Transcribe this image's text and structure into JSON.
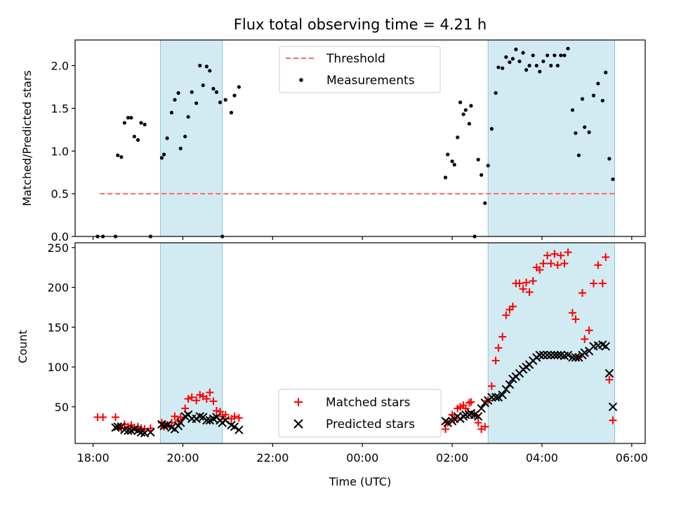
{
  "chart_data": [
    {
      "type": "scatter",
      "title": "Flux total observing time = 4.21 h",
      "xlabel": "",
      "ylabel": "Matched/Predicted stars",
      "xlim": [
        -0.4,
        12.3
      ],
      "ylim": [
        0,
        2.3
      ],
      "yticks": [
        0.0,
        0.5,
        1.0,
        1.5,
        2.0
      ],
      "ytick_labels": [
        "0.0",
        "0.5",
        "1.0",
        "1.5",
        "2.0"
      ],
      "x_unit": "hours since 18:00 UTC",
      "shaded_intervals": [
        [
          1.5,
          2.88
        ],
        [
          8.8,
          11.62
        ]
      ],
      "shade_color": "#add8e6",
      "legend": {
        "position": "top-center",
        "threshold_label": "Threshold",
        "measurements_label": "Measurements"
      },
      "threshold": {
        "y": 0.5,
        "x_range": [
          0.15,
          11.62
        ],
        "color": "#ff6666"
      },
      "measurements": {
        "x": [
          0.1,
          0.22,
          0.5,
          0.55,
          0.63,
          0.7,
          0.78,
          0.85,
          0.92,
          1.0,
          1.07,
          1.15,
          1.28,
          1.53,
          1.58,
          1.65,
          1.75,
          1.82,
          1.9,
          1.95,
          2.05,
          2.12,
          2.2,
          2.3,
          2.38,
          2.45,
          2.53,
          2.6,
          2.68,
          2.75,
          2.83,
          2.88,
          2.95,
          3.08,
          3.15,
          3.25,
          7.85,
          7.9,
          8.0,
          8.05,
          8.12,
          8.18,
          8.25,
          8.3,
          8.38,
          8.42,
          8.5,
          8.58,
          8.65,
          8.73,
          8.8,
          8.88,
          8.97,
          9.03,
          9.12,
          9.2,
          9.28,
          9.35,
          9.42,
          9.5,
          9.58,
          9.65,
          9.72,
          9.8,
          9.88,
          9.95,
          10.03,
          10.12,
          10.2,
          10.28,
          10.35,
          10.42,
          10.5,
          10.58,
          10.68,
          10.75,
          10.82,
          10.9,
          10.95,
          11.05,
          11.15,
          11.25,
          11.35,
          11.42,
          11.5,
          11.58
        ],
        "y": [
          0.0,
          0.0,
          0.0,
          0.95,
          0.93,
          1.33,
          1.39,
          1.39,
          1.17,
          1.13,
          1.33,
          1.31,
          0.0,
          0.92,
          0.96,
          1.15,
          1.45,
          1.6,
          1.68,
          1.03,
          1.17,
          1.4,
          1.69,
          1.56,
          2.0,
          1.77,
          1.99,
          1.94,
          1.73,
          1.69,
          1.57,
          0.0,
          1.6,
          1.45,
          1.65,
          1.75,
          0.69,
          0.96,
          0.88,
          0.84,
          1.16,
          1.57,
          1.43,
          1.48,
          1.32,
          1.53,
          0.0,
          0.9,
          0.72,
          0.39,
          0.83,
          1.26,
          1.68,
          1.98,
          1.97,
          2.1,
          2.04,
          2.08,
          2.19,
          2.05,
          2.15,
          1.95,
          2.0,
          2.12,
          2.0,
          1.93,
          2.05,
          2.12,
          2.0,
          2.12,
          2.0,
          2.12,
          2.12,
          2.2,
          1.48,
          1.21,
          0.95,
          1.61,
          1.28,
          1.22,
          1.65,
          1.79,
          1.59,
          1.92,
          0.91,
          0.67
        ]
      }
    },
    {
      "type": "scatter",
      "xlabel": "Time (UTC)",
      "ylabel": "Count",
      "xlim": [
        -0.4,
        12.3
      ],
      "ylim": [
        4,
        256
      ],
      "yticks": [
        50,
        100,
        150,
        200,
        250
      ],
      "ytick_labels": [
        "50",
        "100",
        "150",
        "200",
        "250"
      ],
      "xticks": [
        0,
        2,
        4,
        6,
        8,
        10,
        12
      ],
      "xtick_labels": [
        "18:00",
        "20:00",
        "22:00",
        "00:00",
        "02:00",
        "04:00",
        "06:00"
      ],
      "shaded_intervals": [
        [
          1.5,
          2.88
        ],
        [
          8.8,
          11.62
        ]
      ],
      "legend": {
        "position": "bottom-center"
      },
      "series": [
        {
          "name": "Matched stars",
          "marker": "+",
          "color": "#ff0000",
          "x": [
            0.1,
            0.22,
            0.5,
            0.55,
            0.63,
            0.7,
            0.78,
            0.85,
            0.92,
            1.0,
            1.07,
            1.15,
            1.28,
            1.53,
            1.58,
            1.65,
            1.75,
            1.82,
            1.9,
            1.95,
            2.05,
            2.12,
            2.2,
            2.3,
            2.38,
            2.45,
            2.53,
            2.6,
            2.68,
            2.75,
            2.83,
            2.88,
            2.95,
            3.08,
            3.15,
            3.25,
            7.85,
            7.9,
            8.0,
            8.05,
            8.12,
            8.18,
            8.25,
            8.3,
            8.38,
            8.42,
            8.5,
            8.58,
            8.65,
            8.73,
            8.8,
            8.88,
            8.97,
            9.03,
            9.12,
            9.2,
            9.28,
            9.35,
            9.42,
            9.5,
            9.58,
            9.65,
            9.72,
            9.8,
            9.88,
            9.95,
            10.03,
            10.12,
            10.2,
            10.28,
            10.35,
            10.42,
            10.5,
            10.58,
            10.68,
            10.75,
            10.82,
            10.9,
            10.95,
            11.05,
            11.15,
            11.25,
            11.35,
            11.42,
            11.5,
            11.58
          ],
          "y": [
            37,
            37,
            37,
            25,
            23,
            28,
            25,
            27,
            24,
            25,
            23,
            22,
            23,
            30,
            25,
            27,
            30,
            38,
            32,
            37,
            48,
            60,
            62,
            58,
            65,
            63,
            60,
            68,
            57,
            45,
            44,
            38,
            40,
            35,
            38,
            36,
            22,
            30,
            40,
            35,
            48,
            50,
            52,
            48,
            55,
            56,
            40,
            30,
            22,
            25,
            58,
            76,
            108,
            124,
            138,
            165,
            172,
            176,
            205,
            205,
            198,
            206,
            194,
            208,
            225,
            222,
            230,
            240,
            230,
            242,
            228,
            240,
            230,
            244,
            168,
            160,
            112,
            193,
            135,
            146,
            205,
            228,
            205,
            238,
            84,
            33
          ]
        },
        {
          "name": "Predicted stars",
          "marker": "x",
          "color": "#000000",
          "x": [
            0.5,
            0.55,
            0.63,
            0.7,
            0.78,
            0.85,
            0.92,
            1.0,
            1.07,
            1.15,
            1.28,
            1.53,
            1.58,
            1.65,
            1.75,
            1.82,
            1.9,
            1.95,
            2.05,
            2.12,
            2.2,
            2.3,
            2.38,
            2.45,
            2.53,
            2.6,
            2.68,
            2.75,
            2.83,
            2.88,
            2.95,
            3.08,
            3.15,
            3.25,
            7.85,
            7.9,
            8.0,
            8.05,
            8.12,
            8.18,
            8.25,
            8.3,
            8.38,
            8.42,
            8.5,
            8.58,
            8.65,
            8.73,
            8.8,
            8.88,
            8.97,
            9.03,
            9.12,
            9.2,
            9.28,
            9.35,
            9.42,
            9.5,
            9.58,
            9.65,
            9.72,
            9.8,
            9.88,
            9.95,
            10.03,
            10.12,
            10.2,
            10.28,
            10.35,
            10.42,
            10.5,
            10.58,
            10.68,
            10.75,
            10.82,
            10.9,
            10.95,
            11.05,
            11.15,
            11.25,
            11.35,
            11.42,
            11.5,
            11.58
          ],
          "y": [
            24,
            25,
            25,
            21,
            20,
            20,
            22,
            20,
            18,
            17,
            18,
            28,
            26,
            27,
            24,
            22,
            26,
            30,
            38,
            40,
            35,
            35,
            38,
            37,
            33,
            33,
            35,
            37,
            33,
            30,
            33,
            27,
            25,
            21,
            32,
            30,
            32,
            35,
            38,
            35,
            38,
            40,
            40,
            42,
            40,
            38,
            48,
            55,
            58,
            62,
            62,
            62,
            65,
            72,
            78,
            85,
            88,
            92,
            97,
            100,
            103,
            108,
            112,
            115,
            115,
            115,
            115,
            115,
            115,
            115,
            114,
            115,
            112,
            112,
            112,
            115,
            118,
            120,
            126,
            127,
            128,
            126,
            92,
            50
          ]
        }
      ]
    }
  ]
}
